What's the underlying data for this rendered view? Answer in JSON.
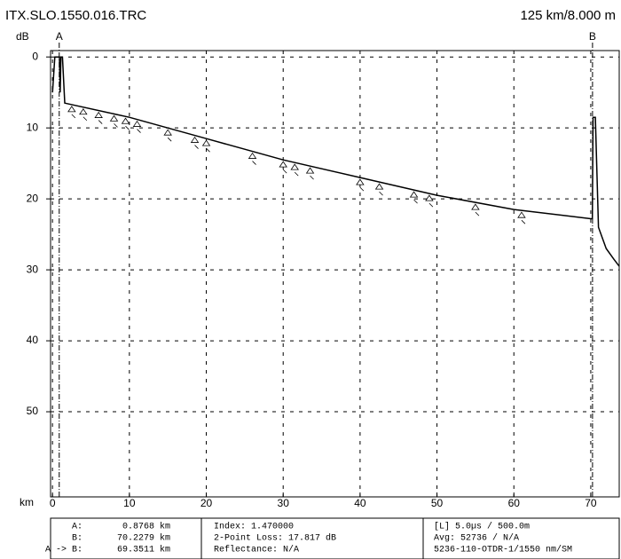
{
  "chart_data": {
    "type": "line",
    "title": "ITX.SLO.1550.016.TRC",
    "subtitle": "125 km/8.000 m",
    "y_label": "dB",
    "x_label": "km",
    "x": [
      0,
      0.3,
      0.6,
      0.9,
      1.0,
      1.1,
      1.3,
      1.6,
      10,
      20,
      30,
      40,
      50,
      60,
      70,
      70.2,
      70.3,
      70.6,
      71,
      72,
      73,
      73.7
    ],
    "values": [
      5,
      0,
      0,
      0,
      5,
      0,
      0,
      6.5,
      8.5,
      11.5,
      14.5,
      17,
      19.5,
      21.5,
      22.8,
      22.8,
      8.5,
      8.5,
      24,
      27,
      28.5,
      29.5
    ],
    "color": "#000000",
    "xlim": [
      -0.25,
      73.7
    ],
    "ylim": [
      -0.9,
      62
    ],
    "y_inverted": true,
    "xticks": [
      0,
      10,
      20,
      30,
      40,
      50,
      60,
      70
    ],
    "yticks": [
      0,
      10,
      20,
      30,
      40,
      50
    ],
    "grid": true,
    "events": [
      2.5,
      4,
      6,
      8,
      9.5,
      11,
      15,
      18.5,
      20,
      26,
      30,
      31.5,
      33.5,
      40,
      42.5,
      47,
      49,
      55,
      61
    ],
    "cursors": [
      {
        "label": "A",
        "value": 0.8768
      },
      {
        "label": "B",
        "value": 70.2279
      }
    ],
    "info": [
      [
        [
          "A:",
          "0.8768 km"
        ],
        [
          "B:",
          "70.2279 km"
        ],
        [
          "A -> B:",
          "69.3511 km"
        ]
      ],
      [
        "Index: 1.470000",
        "2-Point Loss: 17.817 dB",
        "Reflectance: N/A"
      ],
      [
        "[L] 5.0µs / 500.0m",
        "Avg: 52736 / N/A",
        "5236-110-OTDR-1/1550 nm/SM"
      ]
    ]
  }
}
